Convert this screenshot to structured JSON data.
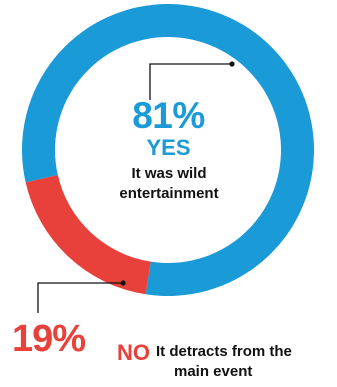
{
  "chart_data": {
    "type": "pie",
    "donut": true,
    "slices": [
      {
        "label": "YES",
        "value": 81,
        "display": "81%",
        "description": "It was wild entertainment",
        "color": "#1a9ad6"
      },
      {
        "label": "NO",
        "value": 19,
        "display": "19%",
        "description": "It detracts from the main event",
        "color": "#e8403a"
      }
    ]
  },
  "annotations": {
    "yes": {
      "pct": "81%",
      "label": "YES",
      "desc": "It was wild entertainment"
    },
    "no": {
      "pct": "19%",
      "label": "NO",
      "desc_line1": "It detracts from the",
      "desc_line2": "main event"
    }
  }
}
